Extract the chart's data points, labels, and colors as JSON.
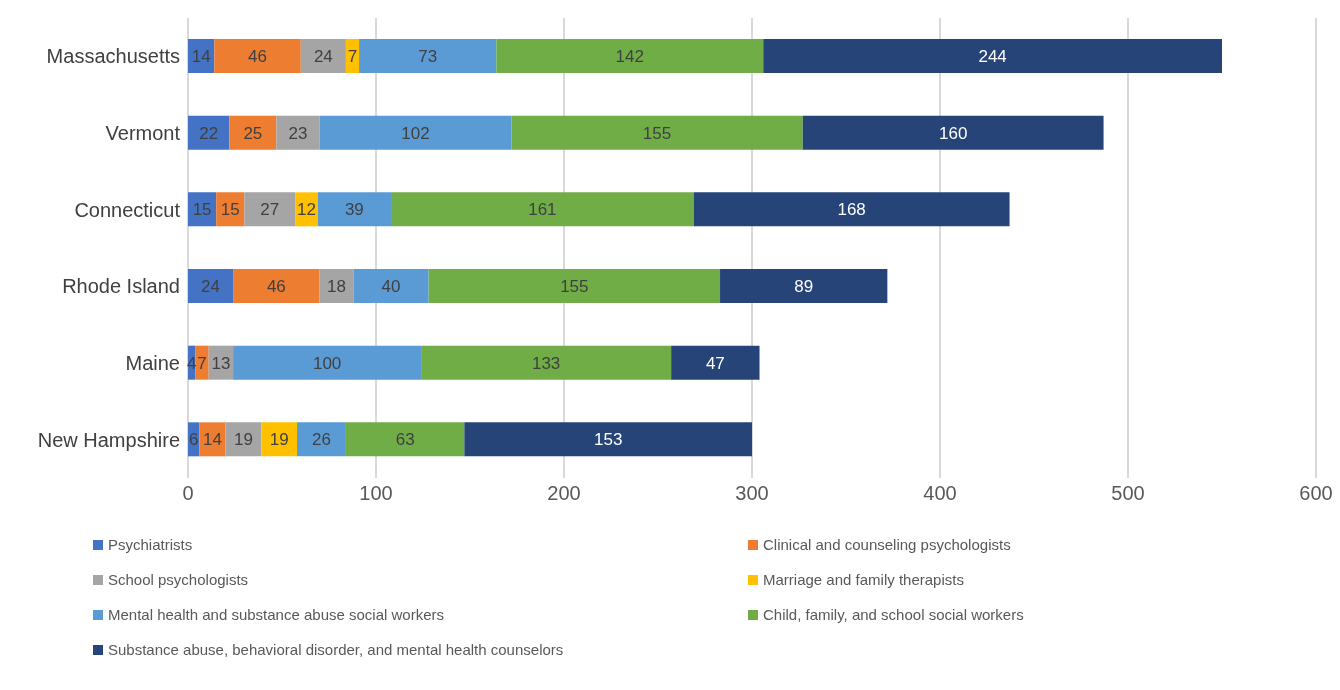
{
  "chart_data": {
    "type": "bar",
    "orientation": "horizontal",
    "stacked": true,
    "categories": [
      "Massachusetts",
      "Vermont",
      "Connecticut",
      "Rhode Island",
      "Maine",
      "New Hampshire"
    ],
    "series": [
      {
        "name": "Psychiatrists",
        "color": "#4472c4",
        "values": [
          14,
          22,
          15,
          24,
          4,
          6
        ]
      },
      {
        "name": "Clinical and counseling psychologists",
        "color": "#ed7d31",
        "values": [
          46,
          25,
          15,
          46,
          7,
          14
        ]
      },
      {
        "name": "School psychologists",
        "color": "#a5a5a5",
        "values": [
          24,
          23,
          27,
          18,
          13,
          19
        ]
      },
      {
        "name": "Marriage and family therapists",
        "color": "#ffc000",
        "values": [
          7,
          null,
          12,
          null,
          null,
          19
        ]
      },
      {
        "name": "Mental health and substance abuse social workers",
        "color": "#5b9bd5",
        "values": [
          73,
          102,
          39,
          40,
          100,
          26
        ]
      },
      {
        "name": "Child, family, and school social workers",
        "color": "#70ad47",
        "values": [
          142,
          155,
          161,
          155,
          133,
          63
        ]
      },
      {
        "name": "Substance abuse, behavioral disorder, and mental health counselors",
        "color": "#264478",
        "values": [
          244,
          160,
          168,
          89,
          47,
          153
        ]
      }
    ],
    "xlim": [
      0,
      600
    ],
    "xticks": [
      0,
      100,
      200,
      300,
      400,
      500,
      600
    ],
    "grid": "x",
    "legend": "bottom",
    "data_labels": true
  }
}
